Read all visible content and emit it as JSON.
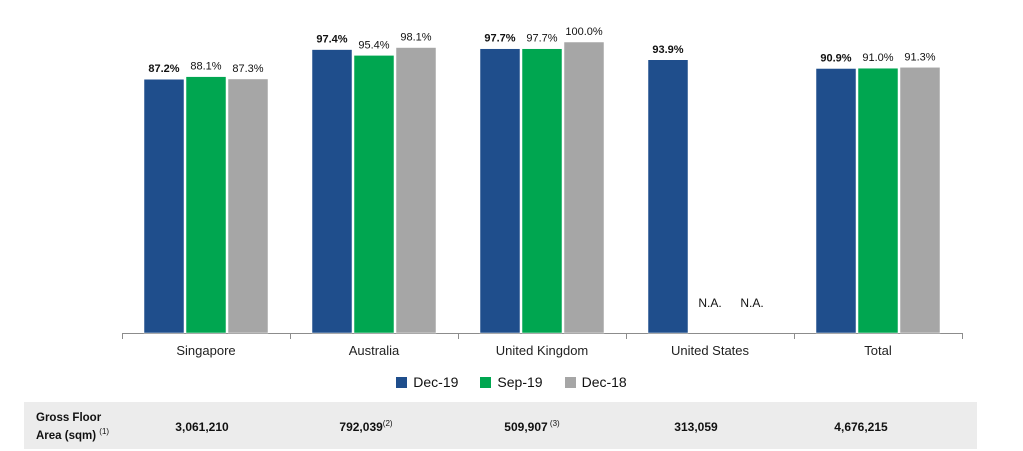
{
  "chart_data": {
    "type": "bar",
    "categories": [
      "Singapore",
      "Australia",
      "United Kingdom",
      "United States",
      "Total"
    ],
    "series": [
      {
        "name": "Dec-19",
        "color": "#1f4e8c",
        "values": [
          87.2,
          97.4,
          97.7,
          93.9,
          90.9
        ],
        "labels": [
          "87.2%",
          "97.4%",
          "97.7%",
          "93.9%",
          "90.9%"
        ]
      },
      {
        "name": "Sep-19",
        "color": "#00a650",
        "values": [
          88.1,
          95.4,
          97.7,
          null,
          91.0
        ],
        "labels": [
          "88.1%",
          "95.4%",
          "97.7%",
          "N.A.",
          "91.0%"
        ]
      },
      {
        "name": "Dec-18",
        "color": "#a6a6a6",
        "values": [
          87.3,
          98.1,
          100.0,
          null,
          91.3
        ],
        "labels": [
          "87.3%",
          "98.1%",
          "100.0%",
          "N.A.",
          "91.3%"
        ]
      }
    ],
    "ylim": [
      0,
      100
    ],
    "legend_position": "bottom",
    "grid": false
  },
  "gfa": {
    "label_line1": "Gross Floor",
    "label_line2": "Area (sqm)",
    "label_note": "(1)",
    "values": [
      {
        "value": "3,061,210",
        "note": ""
      },
      {
        "value": "792,039",
        "note": "(2)"
      },
      {
        "value": "509,907",
        "note": " (3)"
      },
      {
        "value": "313,059",
        "note": ""
      },
      {
        "value": "4,676,215",
        "note": ""
      }
    ]
  }
}
